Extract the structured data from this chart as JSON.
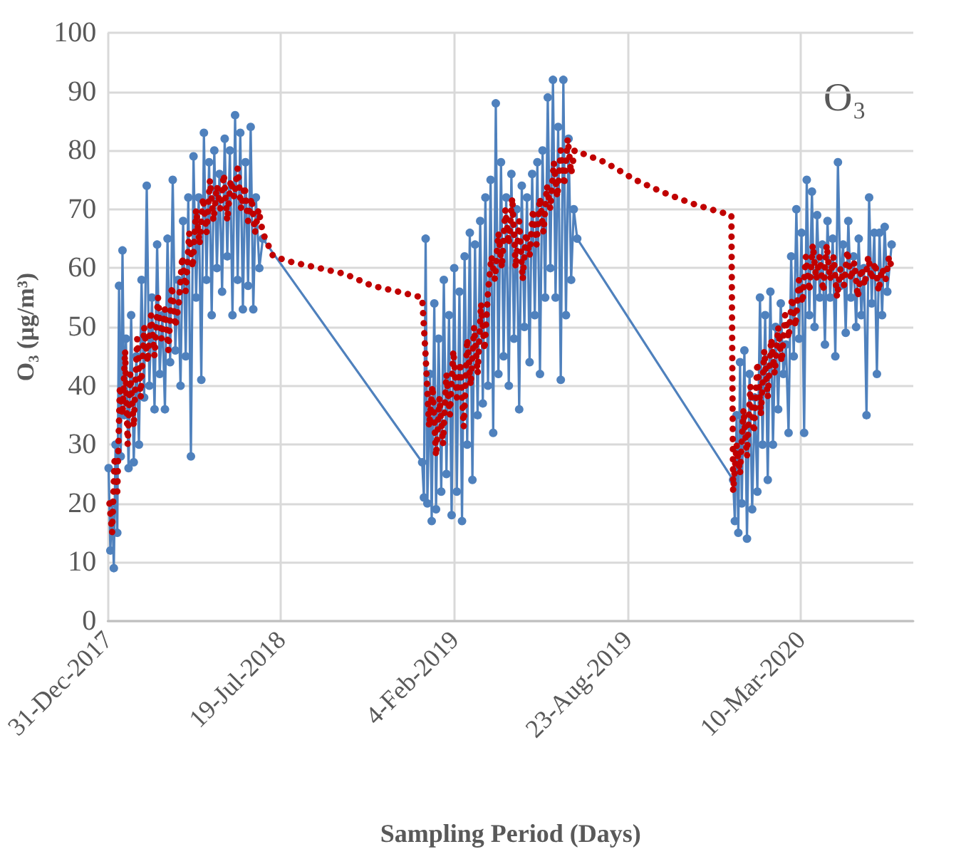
{
  "chart_data": {
    "type": "line",
    "xlabel": "Sampling Period (Days)",
    "ylabel": "O₃ (µg/m³)",
    "annotations": [
      "O₃"
    ],
    "xlim": [
      "2017-12-31",
      "2020-07-18"
    ],
    "xticks": [
      {
        "value": "2017-12-31",
        "label": "31-Dec-2017"
      },
      {
        "value": "2018-07-19",
        "label": "19-Jul-2018"
      },
      {
        "value": "2019-02-04",
        "label": "4-Feb-2019"
      },
      {
        "value": "2019-08-23",
        "label": "23-Aug-2019"
      },
      {
        "value": "2020-03-10",
        "label": "10-Mar-2020"
      }
    ],
    "ylim": [
      0,
      100
    ],
    "yticks": [
      0,
      10,
      20,
      30,
      40,
      50,
      60,
      70,
      80,
      90,
      100
    ],
    "grid": true,
    "series": [
      {
        "color": "#4f81bd",
        "marker": "circle",
        "line_style": "solid",
        "x": [
          "2018-01-01",
          "2018-01-03",
          "2018-01-05",
          "2018-01-07",
          "2018-01-09",
          "2018-01-11",
          "2018-01-13",
          "2018-01-15",
          "2018-01-17",
          "2018-01-19",
          "2018-01-21",
          "2018-01-24",
          "2018-01-27",
          "2018-01-30",
          "2018-02-02",
          "2018-02-05",
          "2018-02-08",
          "2018-02-11",
          "2018-02-14",
          "2018-02-17",
          "2018-02-20",
          "2018-02-23",
          "2018-02-26",
          "2018-03-01",
          "2018-03-04",
          "2018-03-07",
          "2018-03-10",
          "2018-03-13",
          "2018-03-16",
          "2018-03-19",
          "2018-03-22",
          "2018-03-25",
          "2018-03-28",
          "2018-03-31",
          "2018-04-03",
          "2018-04-06",
          "2018-04-09",
          "2018-04-12",
          "2018-04-15",
          "2018-04-18",
          "2018-04-21",
          "2018-04-24",
          "2018-04-27",
          "2018-04-30",
          "2018-05-03",
          "2018-05-06",
          "2018-05-09",
          "2018-05-12",
          "2018-05-15",
          "2018-05-18",
          "2018-05-21",
          "2018-05-24",
          "2018-05-27",
          "2018-05-30",
          "2018-06-02",
          "2018-06-05",
          "2018-06-08",
          "2018-06-11",
          "2018-06-14",
          "2018-06-17",
          "2018-06-20",
          "2018-06-24",
          "2018-06-28",
          "2018-12-29",
          "2018-12-31",
          "2019-01-02",
          "2019-01-04",
          "2019-01-07",
          "2019-01-09",
          "2019-01-12",
          "2019-01-14",
          "2019-01-17",
          "2019-01-20",
          "2019-01-23",
          "2019-01-26",
          "2019-01-29",
          "2019-02-01",
          "2019-02-04",
          "2019-02-07",
          "2019-02-10",
          "2019-02-13",
          "2019-02-16",
          "2019-02-19",
          "2019-02-22",
          "2019-02-25",
          "2019-02-28",
          "2019-03-03",
          "2019-03-06",
          "2019-03-09",
          "2019-03-12",
          "2019-03-15",
          "2019-03-18",
          "2019-03-21",
          "2019-03-24",
          "2019-03-27",
          "2019-03-30",
          "2019-04-02",
          "2019-04-05",
          "2019-04-08",
          "2019-04-11",
          "2019-04-14",
          "2019-04-17",
          "2019-04-20",
          "2019-04-23",
          "2019-04-26",
          "2019-04-29",
          "2019-05-02",
          "2019-05-05",
          "2019-05-08",
          "2019-05-11",
          "2019-05-14",
          "2019-05-17",
          "2019-05-20",
          "2019-05-23",
          "2019-05-26",
          "2019-05-29",
          "2019-06-01",
          "2019-06-04",
          "2019-06-07",
          "2019-06-10",
          "2019-06-13",
          "2019-06-16",
          "2019-06-19",
          "2019-06-22",
          "2019-06-26",
          "2019-12-23",
          "2019-12-25",
          "2019-12-27",
          "2019-12-29",
          "2019-12-31",
          "2020-01-02",
          "2020-01-05",
          "2020-01-08",
          "2020-01-11",
          "2020-01-14",
          "2020-01-17",
          "2020-01-20",
          "2020-01-23",
          "2020-01-26",
          "2020-01-29",
          "2020-02-01",
          "2020-02-04",
          "2020-02-07",
          "2020-02-10",
          "2020-02-13",
          "2020-02-16",
          "2020-02-19",
          "2020-02-22",
          "2020-02-25",
          "2020-02-28",
          "2020-03-02",
          "2020-03-05",
          "2020-03-08",
          "2020-03-11",
          "2020-03-14",
          "2020-03-17",
          "2020-03-20",
          "2020-03-23",
          "2020-03-26",
          "2020-03-29",
          "2020-04-01",
          "2020-04-04",
          "2020-04-07",
          "2020-04-10",
          "2020-04-13",
          "2020-04-16",
          "2020-04-19",
          "2020-04-22",
          "2020-04-25",
          "2020-04-28",
          "2020-05-01",
          "2020-05-04",
          "2020-05-07",
          "2020-05-10",
          "2020-05-13",
          "2020-05-16",
          "2020-05-19",
          "2020-05-22",
          "2020-05-25",
          "2020-05-28",
          "2020-05-31",
          "2020-06-03",
          "2020-06-06",
          "2020-06-09",
          "2020-06-12",
          "2020-06-15",
          "2020-06-18",
          "2020-06-23"
        ],
        "values": [
          26,
          12,
          20,
          9,
          30,
          15,
          57,
          28,
          63,
          35,
          48,
          26,
          52,
          27,
          45,
          30,
          58,
          38,
          74,
          40,
          55,
          36,
          64,
          42,
          52,
          36,
          65,
          44,
          75,
          46,
          58,
          40,
          68,
          45,
          72,
          28,
          79,
          55,
          72,
          41,
          83,
          58,
          78,
          52,
          80,
          60,
          76,
          56,
          82,
          62,
          80,
          52,
          86,
          58,
          83,
          53,
          78,
          57,
          84,
          53,
          72,
          60,
          65,
          27,
          21,
          65,
          20,
          42,
          17,
          54,
          19,
          48,
          22,
          58,
          25,
          52,
          18,
          60,
          22,
          56,
          17,
          62,
          30,
          66,
          24,
          64,
          35,
          68,
          37,
          72,
          40,
          75,
          32,
          88,
          42,
          78,
          45,
          72,
          40,
          76,
          48,
          70,
          36,
          74,
          50,
          72,
          44,
          76,
          52,
          78,
          42,
          80,
          55,
          89,
          60,
          92,
          55,
          84,
          41,
          92,
          52,
          82,
          58,
          70,
          65,
          24,
          17,
          35,
          15,
          44,
          20,
          46,
          14,
          42,
          19,
          38,
          22,
          55,
          30,
          52,
          24,
          56,
          30,
          50,
          36,
          54,
          42,
          47,
          32,
          62,
          45,
          70,
          48,
          66,
          32,
          75,
          52,
          73,
          50,
          69,
          55,
          64,
          47,
          68,
          55,
          65,
          45,
          78,
          57,
          64,
          49,
          68,
          55,
          62,
          50,
          65,
          52,
          60,
          35,
          72,
          54,
          66,
          42,
          66,
          52,
          67,
          56,
          64
        ]
      },
      {
        "color": "#c00000",
        "marker": "none",
        "line_style": "dotted",
        "x": [
          "2018-01-02",
          "2018-01-05",
          "2018-01-08",
          "2018-01-11",
          "2018-01-14",
          "2018-01-17",
          "2018-01-20",
          "2018-01-23",
          "2018-01-26",
          "2018-01-30",
          "2018-02-03",
          "2018-02-07",
          "2018-02-11",
          "2018-02-15",
          "2018-02-19",
          "2018-02-23",
          "2018-02-27",
          "2018-03-03",
          "2018-03-07",
          "2018-03-11",
          "2018-03-15",
          "2018-03-19",
          "2018-03-23",
          "2018-03-27",
          "2018-03-31",
          "2018-04-04",
          "2018-04-08",
          "2018-04-12",
          "2018-04-16",
          "2018-04-20",
          "2018-04-24",
          "2018-04-28",
          "2018-05-02",
          "2018-05-06",
          "2018-05-10",
          "2018-05-14",
          "2018-05-18",
          "2018-05-22",
          "2018-05-26",
          "2018-05-30",
          "2018-06-03",
          "2018-06-07",
          "2018-06-11",
          "2018-06-15",
          "2018-06-19",
          "2018-06-23",
          "2018-06-28",
          "2018-07-10",
          "2018-08-01",
          "2018-09-01",
          "2018-10-01",
          "2018-11-01",
          "2018-12-01",
          "2018-12-29",
          "2019-01-02",
          "2019-01-06",
          "2019-01-10",
          "2019-01-14",
          "2019-01-18",
          "2019-01-22",
          "2019-01-26",
          "2019-01-30",
          "2019-02-03",
          "2019-02-07",
          "2019-02-11",
          "2019-02-15",
          "2019-02-19",
          "2019-02-23",
          "2019-02-27",
          "2019-03-03",
          "2019-03-07",
          "2019-03-11",
          "2019-03-15",
          "2019-03-19",
          "2019-03-23",
          "2019-03-27",
          "2019-03-31",
          "2019-04-04",
          "2019-04-08",
          "2019-04-12",
          "2019-04-16",
          "2019-04-20",
          "2019-04-24",
          "2019-04-28",
          "2019-05-02",
          "2019-05-06",
          "2019-05-10",
          "2019-05-14",
          "2019-05-18",
          "2019-05-22",
          "2019-05-26",
          "2019-05-30",
          "2019-06-03",
          "2019-06-07",
          "2019-06-11",
          "2019-06-15",
          "2019-06-19",
          "2019-06-23",
          "2019-07-28",
          "2019-09-01",
          "2019-10-01",
          "2019-11-05",
          "2019-11-27",
          "2019-12-21",
          "2019-12-23",
          "2019-12-27",
          "2019-12-31",
          "2020-01-04",
          "2020-01-08",
          "2020-01-12",
          "2020-01-16",
          "2020-01-20",
          "2020-01-24",
          "2020-01-28",
          "2020-02-01",
          "2020-02-05",
          "2020-02-09",
          "2020-02-13",
          "2020-02-17",
          "2020-02-21",
          "2020-02-25",
          "2020-02-29",
          "2020-03-04",
          "2020-03-08",
          "2020-03-12",
          "2020-03-16",
          "2020-03-20",
          "2020-03-24",
          "2020-03-28",
          "2020-04-01",
          "2020-04-05",
          "2020-04-09",
          "2020-04-13",
          "2020-04-17",
          "2020-04-21",
          "2020-04-25",
          "2020-04-29",
          "2020-05-03",
          "2020-05-07",
          "2020-05-11",
          "2020-05-15",
          "2020-05-19",
          "2020-05-23",
          "2020-05-27",
          "2020-05-31",
          "2020-06-04",
          "2020-06-08",
          "2020-06-12",
          "2020-06-16",
          "2020-06-20",
          "2020-06-23"
        ],
        "values": [
          20,
          15,
          28,
          22,
          40,
          35,
          46,
          30,
          42,
          33,
          48,
          38,
          50,
          44,
          52,
          45,
          55,
          48,
          53,
          46,
          57,
          50,
          54,
          62,
          56,
          66,
          60,
          70,
          64,
          72,
          66,
          75,
          68,
          74,
          70,
          76,
          68,
          75,
          72,
          77,
          70,
          74,
          68,
          72,
          66,
          70,
          66,
          62,
          61,
          60,
          59,
          57,
          56,
          55,
          45,
          33,
          40,
          28,
          38,
          30,
          42,
          35,
          46,
          38,
          44,
          33,
          48,
          40,
          50,
          42,
          54,
          46,
          56,
          62,
          58,
          66,
          60,
          70,
          64,
          72,
          60,
          68,
          58,
          66,
          62,
          70,
          64,
          72,
          66,
          74,
          70,
          78,
          72,
          80,
          74,
          82,
          76,
          80,
          78,
          75,
          73,
          71,
          70,
          69,
          22,
          30,
          25,
          36,
          28,
          40,
          32,
          44,
          35,
          46,
          38,
          48,
          42,
          50,
          44,
          52,
          48,
          55,
          50,
          58,
          54,
          62,
          56,
          64,
          58,
          62,
          56,
          64,
          58,
          62,
          55,
          60,
          57,
          63,
          58,
          61,
          55,
          60,
          57,
          62,
          58,
          61,
          56,
          60,
          58,
          62,
          60
        ]
      }
    ]
  }
}
